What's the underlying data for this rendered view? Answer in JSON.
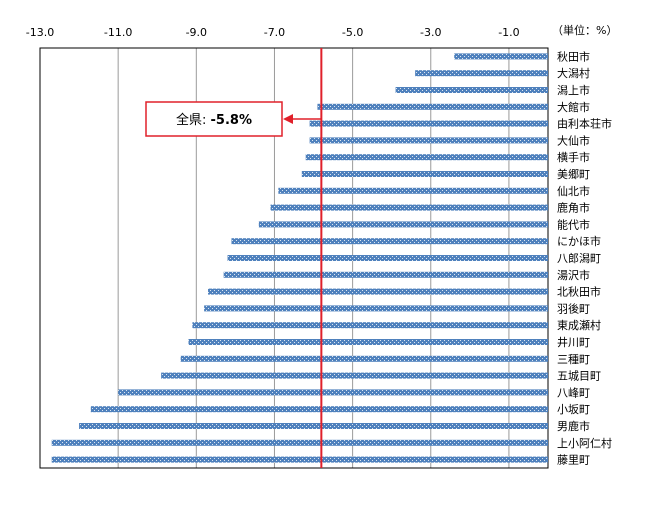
{
  "chart_data": {
    "type": "bar",
    "orientation": "horizontal",
    "unit_label": "（単位：%）",
    "xlim": [
      -13.0,
      0.0
    ],
    "x_ticks": [
      -13.0,
      -11.0,
      -9.0,
      -7.0,
      -5.0,
      -3.0,
      -1.0
    ],
    "x_tick_labels": [
      "-13.0",
      "-11.0",
      "-9.0",
      "-7.0",
      "-5.0",
      "-3.0",
      "-1.0"
    ],
    "axis_position": "top",
    "grid": true,
    "categories": [
      "秋田市",
      "大潟村",
      "潟上市",
      "大館市",
      "由利本荘市",
      "大仙市",
      "横手市",
      "美郷町",
      "仙北市",
      "鹿角市",
      "能代市",
      "にかほ市",
      "八郎潟町",
      "湯沢市",
      "北秋田市",
      "羽後町",
      "東成瀬村",
      "井川町",
      "三種町",
      "五城目町",
      "八峰町",
      "小坂町",
      "男鹿市",
      "上小阿仁村",
      "藤里町"
    ],
    "values": [
      -2.4,
      -3.4,
      -3.9,
      -5.9,
      -6.1,
      -6.1,
      -6.2,
      -6.3,
      -6.9,
      -7.1,
      -7.4,
      -8.1,
      -8.2,
      -8.3,
      -8.7,
      -8.8,
      -9.1,
      -9.2,
      -9.4,
      -9.9,
      -11.0,
      -11.7,
      -12.0,
      -12.7,
      -12.7
    ],
    "bar_color": "#4f81bd",
    "reference_line": {
      "value": -5.8,
      "color": "#e0202a",
      "label_prefix": "全県: ",
      "label_value": "-5.8%"
    }
  }
}
